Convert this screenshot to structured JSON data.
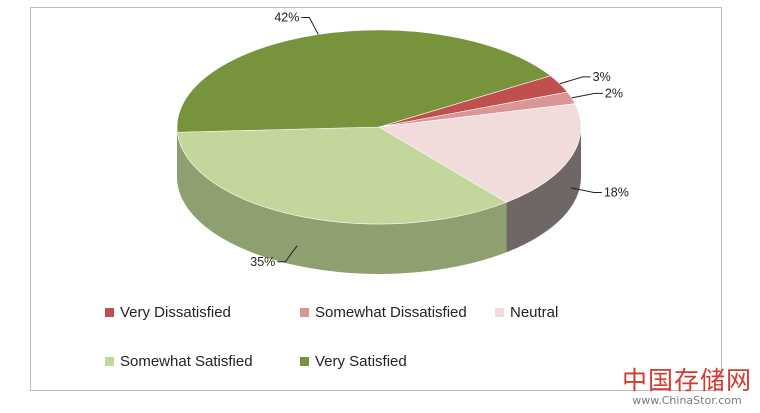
{
  "chart_data": {
    "type": "pie",
    "categories": [
      "Very Dissatisfied",
      "Somewhat Dissatisfied",
      "Neutral",
      "Somewhat Satisfied",
      "Very Satisfied"
    ],
    "values": [
      3,
      2,
      18,
      35,
      42
    ],
    "data_labels": [
      "3%",
      "2%",
      "18%",
      "35%",
      "42%"
    ],
    "colors": [
      "#c0504d",
      "#d99694",
      "#f2dcdb",
      "#c3d69b",
      "#77933c"
    ],
    "side_colors": [
      "#8c3a38",
      "#9b6a69",
      "#6e6766",
      "#8ea070",
      "#556b2b"
    ],
    "legend_position": "bottom",
    "style": "3d"
  },
  "watermark": {
    "cn": "中国存储网",
    "url": "www.ChinaStor.com"
  }
}
